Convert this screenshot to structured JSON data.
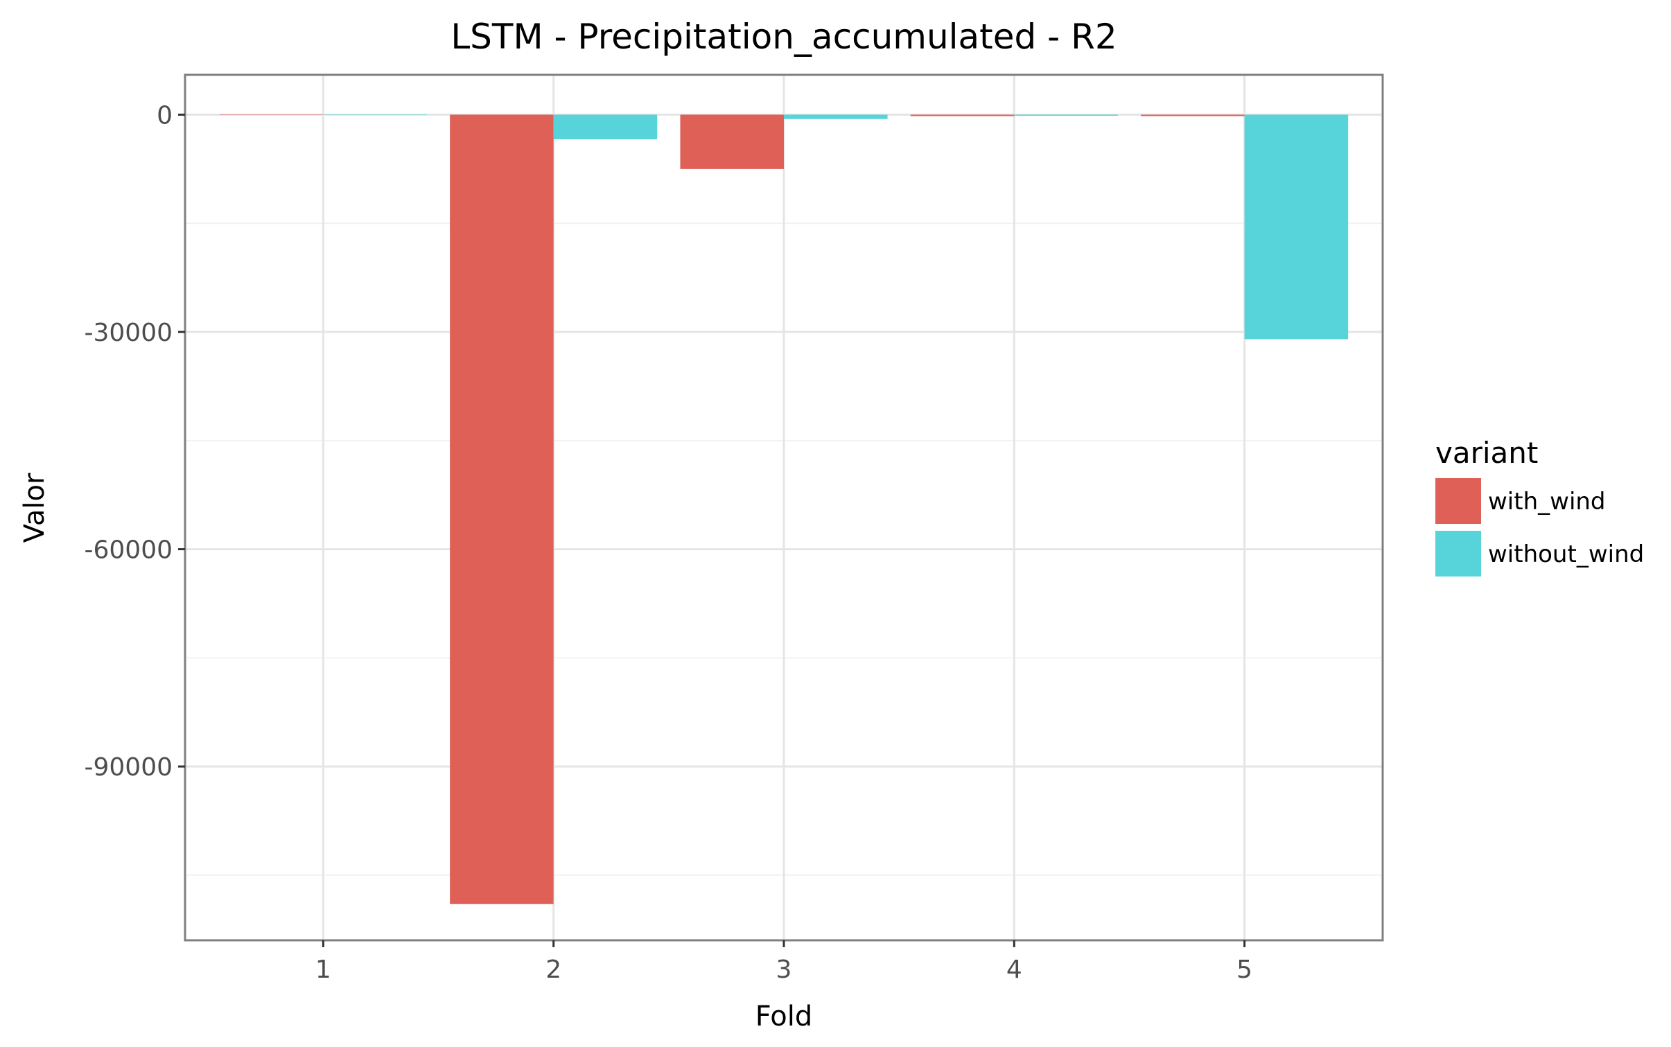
{
  "chart_data": {
    "type": "bar",
    "title": "LSTM - Precipitation_accumulated - R2",
    "xlabel": "Fold",
    "ylabel": "Valor",
    "categories": [
      "1",
      "2",
      "3",
      "4",
      "5"
    ],
    "y_ticks": [
      0,
      -30000,
      -60000,
      -90000
    ],
    "y_tick_labels": [
      "0",
      "-30000",
      "-60000",
      "-90000"
    ],
    "ylim": [
      -114000,
      5500
    ],
    "xlim": [
      0.4,
      5.6
    ],
    "grid": true,
    "legend": {
      "title": "variant",
      "position": "right"
    },
    "series": [
      {
        "name": "with_wind",
        "color": "#de6057",
        "values": [
          -0.5,
          -109000,
          -7500,
          -200,
          -200
        ]
      },
      {
        "name": "without_wind",
        "color": "#57d3da",
        "values": [
          -0.5,
          -3400,
          -600,
          -150,
          -31000
        ]
      }
    ]
  }
}
